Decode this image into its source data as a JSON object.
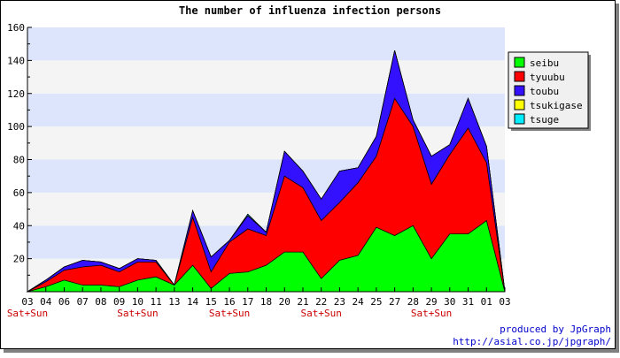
{
  "chart_data": {
    "type": "area",
    "stacked": true,
    "title": "The number of influenza infection persons",
    "xlabel": "",
    "ylabel": "",
    "ylim": [
      0,
      160
    ],
    "yticks": [
      20,
      40,
      60,
      80,
      100,
      120,
      140,
      160
    ],
    "grid": true,
    "legend_position": "top-right",
    "categories": [
      "03",
      "04",
      "06",
      "07",
      "08",
      "09",
      "10",
      "11",
      "13",
      "14",
      "15",
      "16",
      "17",
      "18",
      "20",
      "21",
      "22",
      "23",
      "24",
      "25",
      "27",
      "28",
      "29",
      "30",
      "31",
      "01",
      "03"
    ],
    "weekend_label": "Sat+Sun",
    "weekend_indices": [
      0,
      6,
      11,
      16,
      22
    ],
    "series": [
      {
        "name": "seibu",
        "color": "#00ff00",
        "values": [
          0,
          3,
          7,
          4,
          4,
          3,
          7,
          9,
          4,
          16,
          2,
          11,
          12,
          16,
          24,
          24,
          8,
          19,
          22,
          39,
          34,
          40,
          20,
          35,
          35,
          43,
          0
        ]
      },
      {
        "name": "tyuubu",
        "color": "#ff0000",
        "values": [
          0,
          3,
          6,
          11,
          12,
          9,
          11,
          9,
          0,
          29,
          10,
          19,
          26,
          18,
          46,
          39,
          35,
          35,
          44,
          43,
          83,
          60,
          45,
          48,
          64,
          35,
          0
        ]
      },
      {
        "name": "toubu",
        "color": "#3311ff",
        "values": [
          0,
          1,
          2,
          4,
          2,
          2,
          2,
          1,
          0,
          4,
          9,
          1,
          8,
          2,
          15,
          10,
          13,
          19,
          9,
          12,
          29,
          4,
          17,
          6,
          18,
          10,
          0
        ]
      },
      {
        "name": "tsukigase",
        "color": "#ffff00",
        "values": [
          0,
          0,
          0,
          0,
          0,
          0,
          0,
          0,
          0,
          0,
          0,
          0,
          0,
          0,
          0,
          0,
          0,
          0,
          0,
          0,
          0,
          0,
          0,
          0,
          0,
          0,
          0
        ]
      },
      {
        "name": "tsuge",
        "color": "#00eeff",
        "values": [
          0,
          0,
          0,
          0,
          0,
          0,
          0,
          0,
          0,
          0,
          0,
          0,
          1,
          0,
          0,
          0,
          0,
          0,
          0,
          0,
          0,
          0,
          0,
          0,
          0,
          0,
          0
        ]
      }
    ]
  },
  "footer": {
    "credit_line1": "produced by JpGraph",
    "credit_line2": "http://asial.co.jp/jpgraph/"
  },
  "colors": {
    "band_blue": "#dce5fb",
    "band_light": "#f4f4f4",
    "weekend_text": "#cc0000",
    "credit_text": "#0000cc"
  }
}
